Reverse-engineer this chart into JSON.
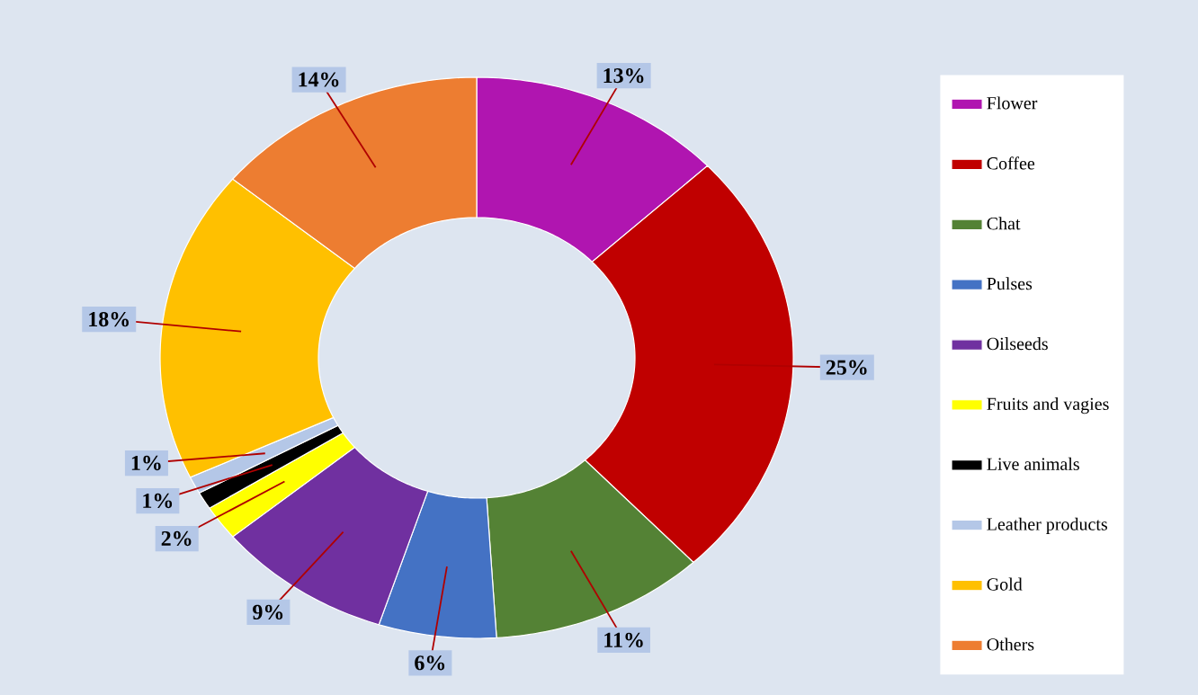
{
  "chart_data": {
    "type": "donut",
    "categories": [
      "Flower",
      "Coffee",
      "Chat",
      "Pulses",
      "Oilseeds",
      "Fruits and vagies",
      "Live animals",
      "Leather products",
      "Gold",
      "Others"
    ],
    "values": [
      13,
      25,
      11,
      6,
      9,
      2,
      1,
      1,
      18,
      14
    ],
    "value_labels": [
      "13%",
      "25%",
      "11%",
      "6%",
      "9%",
      "2%",
      "1%",
      "1%",
      "18%",
      "14%"
    ],
    "colors": [
      "#b015b0",
      "#c00000",
      "#548235",
      "#4472c4",
      "#7030a0",
      "#ffff00",
      "#000000",
      "#b4c7e7",
      "#ffc000",
      "#ed7d31"
    ],
    "legend": "right"
  }
}
